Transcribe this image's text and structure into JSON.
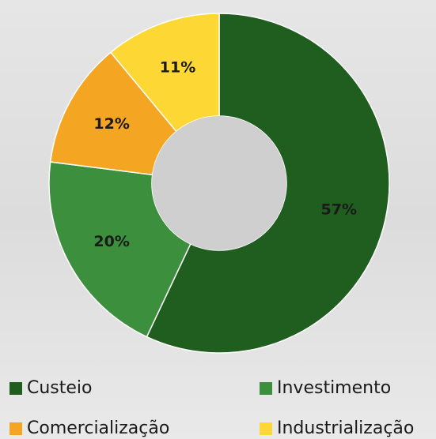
{
  "chart_data": {
    "type": "donut",
    "categories": [
      "Custeio",
      "Investimento",
      "Comercialização",
      "Industrialização"
    ],
    "values": [
      57,
      20,
      12,
      11
    ],
    "value_labels": [
      "57%",
      "20%",
      "12%",
      "11%"
    ],
    "colors": [
      "#1f5e1f",
      "#3c8f3c",
      "#f4a522",
      "#fdd835"
    ]
  }
}
